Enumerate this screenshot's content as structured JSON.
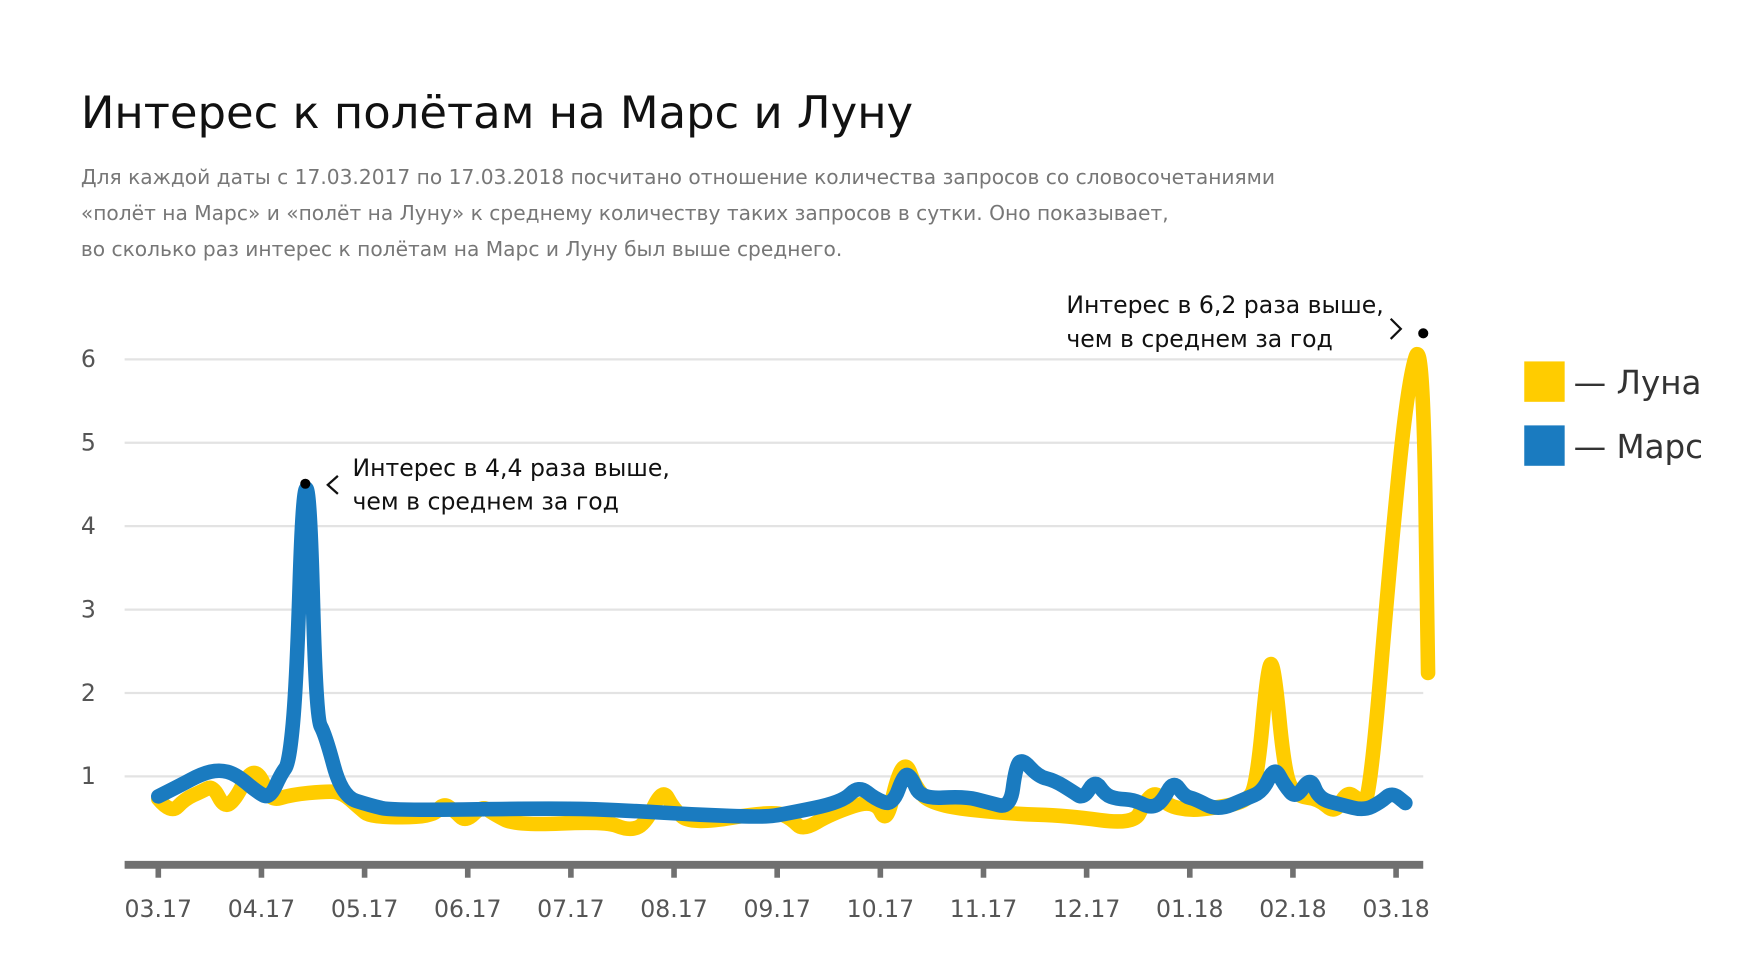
{
  "title": "Интерес к полётам на Марс и Луну",
  "subtitle": [
    "Для каждой даты с 17.03.2017 по 17.03.2018 посчитано отношение количества запросов со словосочетаниями",
    "«полёт на Марс» и «полёт на Луну» к среднему количеству таких запросов в сутки. Оно показывает,",
    "во сколько раз интерес к полётам на Марс и Луну был выше среднего."
  ],
  "chart_data": {
    "type": "line",
    "x_unit": "months since 17.03.2017",
    "xticks": [
      "03.17",
      "04.17",
      "05.17",
      "06.17",
      "07.17",
      "08.17",
      "09.17",
      "10.17",
      "11.17",
      "12.17",
      "01.18",
      "02.18",
      "03.18"
    ],
    "yticks": [
      "1",
      "2",
      "3",
      "4",
      "5",
      "6"
    ],
    "ylim": [
      0,
      6.6
    ],
    "grid": true,
    "legend": {
      "placement": "right",
      "entries": [
        "— Луна",
        "— Марс"
      ]
    },
    "series": [
      {
        "name": "Луна",
        "color": "#ffcc00",
        "points": [
          [
            0,
            0.73
          ],
          [
            0.12,
            0.55
          ],
          [
            0.26,
            0.73
          ],
          [
            0.42,
            0.82
          ],
          [
            0.53,
            0.89
          ],
          [
            0.64,
            0.62
          ],
          [
            0.75,
            0.73
          ],
          [
            0.88,
            1.05
          ],
          [
            0.99,
            1.03
          ],
          [
            1.08,
            0.7
          ],
          [
            1.29,
            0.78
          ],
          [
            1.62,
            0.82
          ],
          [
            1.78,
            0.81
          ],
          [
            1.95,
            0.62
          ],
          [
            2.06,
            0.51
          ],
          [
            2.66,
            0.51
          ],
          [
            2.76,
            0.68
          ],
          [
            2.87,
            0.59
          ],
          [
            2.98,
            0.45
          ],
          [
            3.14,
            0.65
          ],
          [
            3.25,
            0.55
          ],
          [
            3.47,
            0.41
          ],
          [
            4.34,
            0.46
          ],
          [
            4.56,
            0.35
          ],
          [
            4.72,
            0.42
          ],
          [
            4.89,
            0.86
          ],
          [
            4.99,
            0.62
          ],
          [
            5.16,
            0.42
          ],
          [
            5.97,
            0.59
          ],
          [
            6.14,
            0.49
          ],
          [
            6.25,
            0.35
          ],
          [
            6.52,
            0.55
          ],
          [
            6.95,
            0.73
          ],
          [
            7.06,
            0.42
          ],
          [
            7.17,
            1.03
          ],
          [
            7.26,
            1.16
          ],
          [
            7.33,
            0.89
          ],
          [
            7.5,
            0.65
          ],
          [
            8.26,
            0.55
          ],
          [
            8.8,
            0.53
          ],
          [
            9.46,
            0.42
          ],
          [
            9.56,
            0.69
          ],
          [
            9.67,
            0.82
          ],
          [
            9.78,
            0.65
          ],
          [
            10.0,
            0.59
          ],
          [
            10.22,
            0.62
          ],
          [
            10.54,
            0.69
          ],
          [
            10.65,
            0.89
          ],
          [
            10.76,
            2.38
          ],
          [
            10.82,
            2.31
          ],
          [
            10.92,
            1.03
          ],
          [
            11.03,
            0.76
          ],
          [
            11.25,
            0.73
          ],
          [
            11.41,
            0.55
          ],
          [
            11.52,
            0.82
          ],
          [
            11.63,
            0.73
          ],
          [
            11.74,
            0.62
          ],
          [
            11.96,
            3.86
          ],
          [
            12.12,
            5.76
          ],
          [
            12.26,
            6.3
          ],
          [
            12.31,
            2.24
          ]
        ]
      },
      {
        "name": "Марс",
        "color": "#1a7bc0",
        "points": [
          [
            0,
            0.76
          ],
          [
            0.21,
            0.89
          ],
          [
            0.42,
            1.03
          ],
          [
            0.59,
            1.08
          ],
          [
            0.75,
            1.03
          ],
          [
            0.95,
            0.82
          ],
          [
            1.08,
            0.73
          ],
          [
            1.19,
            1.03
          ],
          [
            1.27,
            1.16
          ],
          [
            1.34,
            2.11
          ],
          [
            1.4,
            4.45
          ],
          [
            1.47,
            4.45
          ],
          [
            1.53,
            1.7
          ],
          [
            1.62,
            1.5
          ],
          [
            1.78,
            0.76
          ],
          [
            2.06,
            0.65
          ],
          [
            2.27,
            0.59
          ],
          [
            3.91,
            0.62
          ],
          [
            4.56,
            0.59
          ],
          [
            5.21,
            0.54
          ],
          [
            5.87,
            0.51
          ],
          [
            6.08,
            0.55
          ],
          [
            6.63,
            0.69
          ],
          [
            6.79,
            0.89
          ],
          [
            6.95,
            0.73
          ],
          [
            7.12,
            0.65
          ],
          [
            7.23,
            1.03
          ],
          [
            7.3,
            1.0
          ],
          [
            7.39,
            0.73
          ],
          [
            7.82,
            0.76
          ],
          [
            8.04,
            0.69
          ],
          [
            8.26,
            0.62
          ],
          [
            8.31,
            1.09
          ],
          [
            8.37,
            1.22
          ],
          [
            8.53,
            1.0
          ],
          [
            8.69,
            0.95
          ],
          [
            8.86,
            0.82
          ],
          [
            8.97,
            0.73
          ],
          [
            9.08,
            0.96
          ],
          [
            9.18,
            0.78
          ],
          [
            9.29,
            0.73
          ],
          [
            9.46,
            0.72
          ],
          [
            9.62,
            0.62
          ],
          [
            9.73,
            0.69
          ],
          [
            9.84,
            0.95
          ],
          [
            9.95,
            0.76
          ],
          [
            10.05,
            0.73
          ],
          [
            10.27,
            0.59
          ],
          [
            10.54,
            0.73
          ],
          [
            10.71,
            0.82
          ],
          [
            10.82,
            1.12
          ],
          [
            10.92,
            0.89
          ],
          [
            11.03,
            0.73
          ],
          [
            11.17,
            1.0
          ],
          [
            11.25,
            0.73
          ],
          [
            11.47,
            0.66
          ],
          [
            11.69,
            0.59
          ],
          [
            11.85,
            0.69
          ],
          [
            11.96,
            0.81
          ],
          [
            12.09,
            0.68
          ]
        ]
      }
    ],
    "annotations": [
      {
        "series": "Марс",
        "point": [
          1.43,
          4.4
        ],
        "lines": [
          "Интерес в 4,4 раза выше,",
          "чем в среднем за год"
        ]
      },
      {
        "series": "Луна",
        "point": [
          12.26,
          6.2
        ],
        "lines": [
          "Интерес в 6,2 раза выше,",
          "чем в среднем за год"
        ]
      }
    ]
  }
}
